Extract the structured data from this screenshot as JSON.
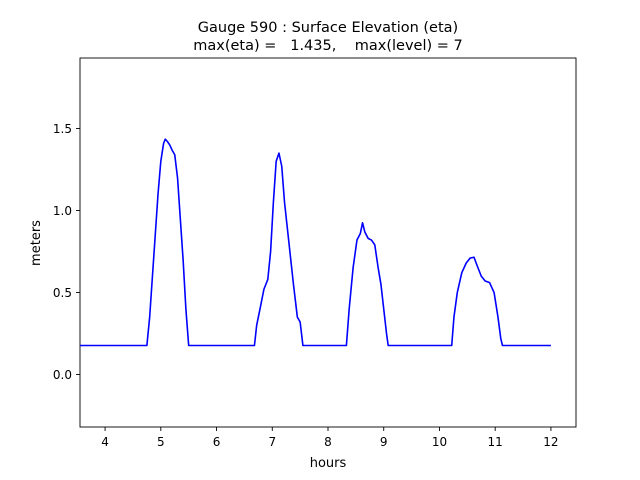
{
  "chart_data": {
    "type": "line",
    "title_line1": "Gauge 590 : Surface Elevation (eta)",
    "title_line2": "max(eta) =   1.435,    max(level) = 7",
    "xlabel": "hours",
    "ylabel": "meters",
    "xlim": [
      3.55,
      12.45
    ],
    "ylim": [
      -0.32,
      1.93
    ],
    "xticks": [
      4,
      5,
      6,
      7,
      8,
      9,
      10,
      11,
      12
    ],
    "yticks": [
      0.0,
      0.5,
      1.0,
      1.5
    ],
    "xtick_labels": [
      "4",
      "5",
      "6",
      "7",
      "8",
      "9",
      "10",
      "11",
      "12"
    ],
    "ytick_labels": [
      "0.0",
      "0.5",
      "1.0",
      "1.5"
    ],
    "series": [
      {
        "name": "eta",
        "color": "#0000ff",
        "points": [
          [
            3.55,
            0.177
          ],
          [
            4.75,
            0.177
          ],
          [
            4.8,
            0.35
          ],
          [
            4.85,
            0.6
          ],
          [
            4.9,
            0.85
          ],
          [
            4.95,
            1.1
          ],
          [
            5.0,
            1.3
          ],
          [
            5.05,
            1.41
          ],
          [
            5.08,
            1.435
          ],
          [
            5.12,
            1.42
          ],
          [
            5.16,
            1.4
          ],
          [
            5.2,
            1.37
          ],
          [
            5.25,
            1.34
          ],
          [
            5.3,
            1.2
          ],
          [
            5.35,
            0.95
          ],
          [
            5.4,
            0.7
          ],
          [
            5.45,
            0.4
          ],
          [
            5.5,
            0.177
          ],
          [
            6.68,
            0.177
          ],
          [
            6.72,
            0.3
          ],
          [
            6.78,
            0.4
          ],
          [
            6.85,
            0.52
          ],
          [
            6.92,
            0.58
          ],
          [
            6.97,
            0.75
          ],
          [
            7.02,
            1.05
          ],
          [
            7.07,
            1.3
          ],
          [
            7.12,
            1.35
          ],
          [
            7.17,
            1.27
          ],
          [
            7.22,
            1.05
          ],
          [
            7.3,
            0.8
          ],
          [
            7.38,
            0.55
          ],
          [
            7.45,
            0.35
          ],
          [
            7.5,
            0.32
          ],
          [
            7.55,
            0.177
          ],
          [
            8.33,
            0.177
          ],
          [
            8.38,
            0.4
          ],
          [
            8.45,
            0.65
          ],
          [
            8.52,
            0.82
          ],
          [
            8.58,
            0.86
          ],
          [
            8.62,
            0.925
          ],
          [
            8.66,
            0.87
          ],
          [
            8.72,
            0.83
          ],
          [
            8.78,
            0.82
          ],
          [
            8.84,
            0.79
          ],
          [
            8.9,
            0.65
          ],
          [
            8.95,
            0.55
          ],
          [
            9.0,
            0.4
          ],
          [
            9.05,
            0.25
          ],
          [
            9.08,
            0.177
          ],
          [
            10.22,
            0.177
          ],
          [
            10.26,
            0.35
          ],
          [
            10.32,
            0.5
          ],
          [
            10.4,
            0.62
          ],
          [
            10.48,
            0.68
          ],
          [
            10.55,
            0.71
          ],
          [
            10.62,
            0.715
          ],
          [
            10.68,
            0.66
          ],
          [
            10.75,
            0.6
          ],
          [
            10.82,
            0.57
          ],
          [
            10.9,
            0.56
          ],
          [
            10.98,
            0.5
          ],
          [
            11.05,
            0.35
          ],
          [
            11.1,
            0.22
          ],
          [
            11.13,
            0.177
          ],
          [
            12.0,
            0.177
          ]
        ]
      }
    ]
  }
}
